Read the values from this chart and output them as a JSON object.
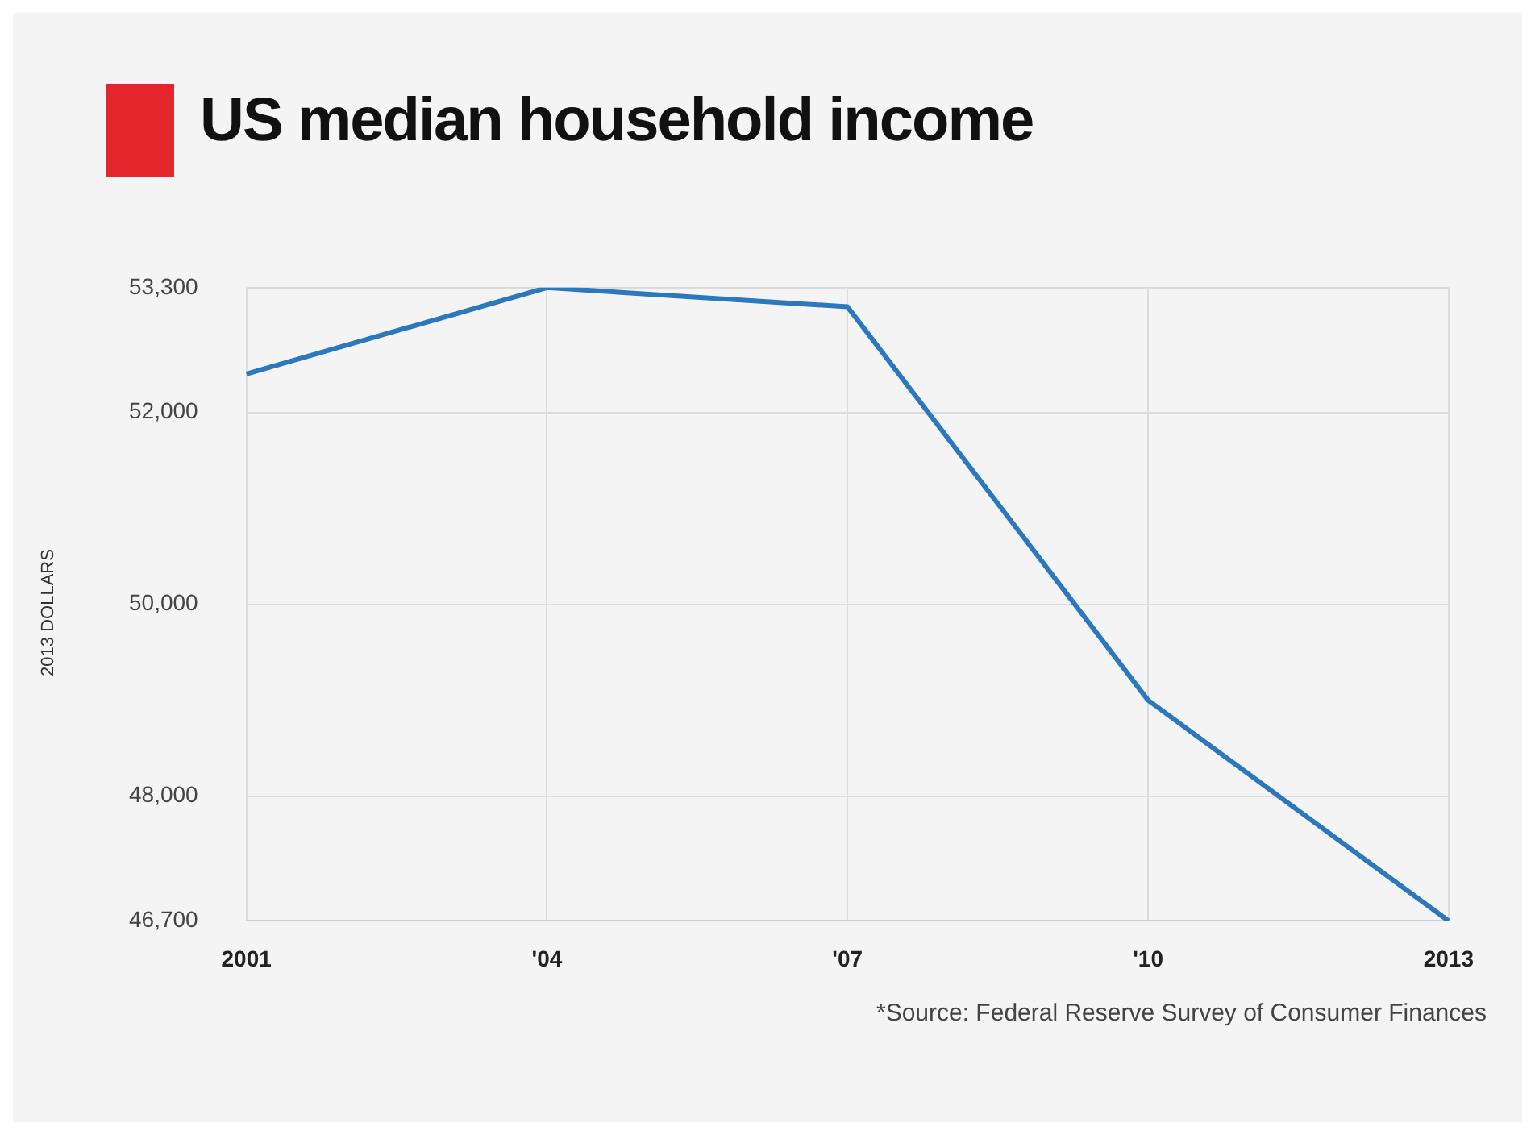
{
  "chart_data": {
    "type": "line",
    "title": "US median household income",
    "ylabel": "2013 DOLLARS",
    "categories": [
      "2001",
      "'04",
      "'07",
      "'10",
      "2013"
    ],
    "series": [
      {
        "color": "#2b78bd",
        "values": [
          52400,
          53300,
          53100,
          49000,
          46700
        ]
      }
    ],
    "ylim": [
      46700,
      53300
    ],
    "yticks": [
      {
        "value": 46700,
        "label": "46,700"
      },
      {
        "value": 48000,
        "label": "48,000"
      },
      {
        "value": 50000,
        "label": "50,000"
      },
      {
        "value": 52000,
        "label": "52,000"
      },
      {
        "value": 53300,
        "label": "53,300"
      }
    ],
    "grid": true,
    "marker": "none",
    "line_style": "solid",
    "annotations": [
      "*Source: Federal Reserve Survey of Consumer Finances"
    ]
  }
}
